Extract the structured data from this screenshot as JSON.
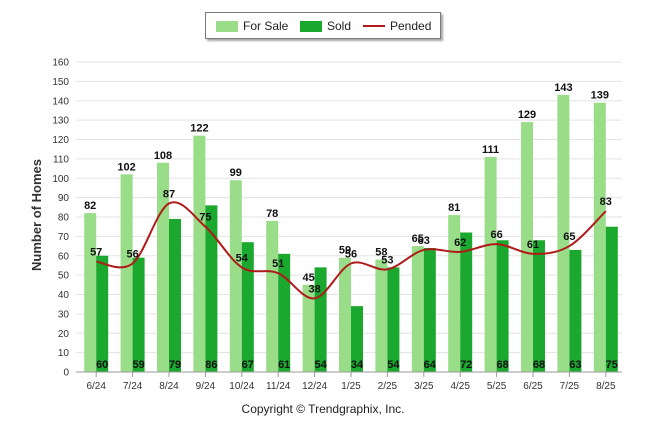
{
  "chart_data": {
    "type": "bar",
    "categories": [
      "6/24",
      "7/24",
      "8/24",
      "9/24",
      "10/24",
      "11/24",
      "12/24",
      "1/25",
      "2/25",
      "3/25",
      "4/25",
      "5/25",
      "6/25",
      "7/25",
      "8/25"
    ],
    "series": [
      {
        "name": "For Sale",
        "type": "bar",
        "color": "#99dd88",
        "values": [
          82,
          102,
          108,
          122,
          99,
          78,
          45,
          59,
          58,
          65,
          81,
          111,
          129,
          143,
          139
        ]
      },
      {
        "name": "Sold",
        "type": "bar",
        "color": "#1aa82e",
        "values": [
          60,
          59,
          79,
          86,
          67,
          61,
          54,
          34,
          54,
          64,
          72,
          68,
          68,
          63,
          75
        ]
      },
      {
        "name": "Pended",
        "type": "line",
        "color": "#b01a1a",
        "values": [
          57,
          56,
          87,
          75,
          54,
          51,
          38,
          56,
          53,
          63,
          62,
          66,
          61,
          65,
          83
        ]
      }
    ],
    "ylabel": "Number of Homes",
    "xlabel": "",
    "ylim": [
      0,
      160
    ],
    "yticks": [
      0,
      10,
      20,
      30,
      40,
      50,
      60,
      70,
      80,
      90,
      100,
      110,
      120,
      130,
      140,
      150,
      160
    ],
    "grid": true,
    "legend_position": "top-center"
  },
  "footer": {
    "copyright": "Copyright © Trendgraphix, Inc."
  }
}
